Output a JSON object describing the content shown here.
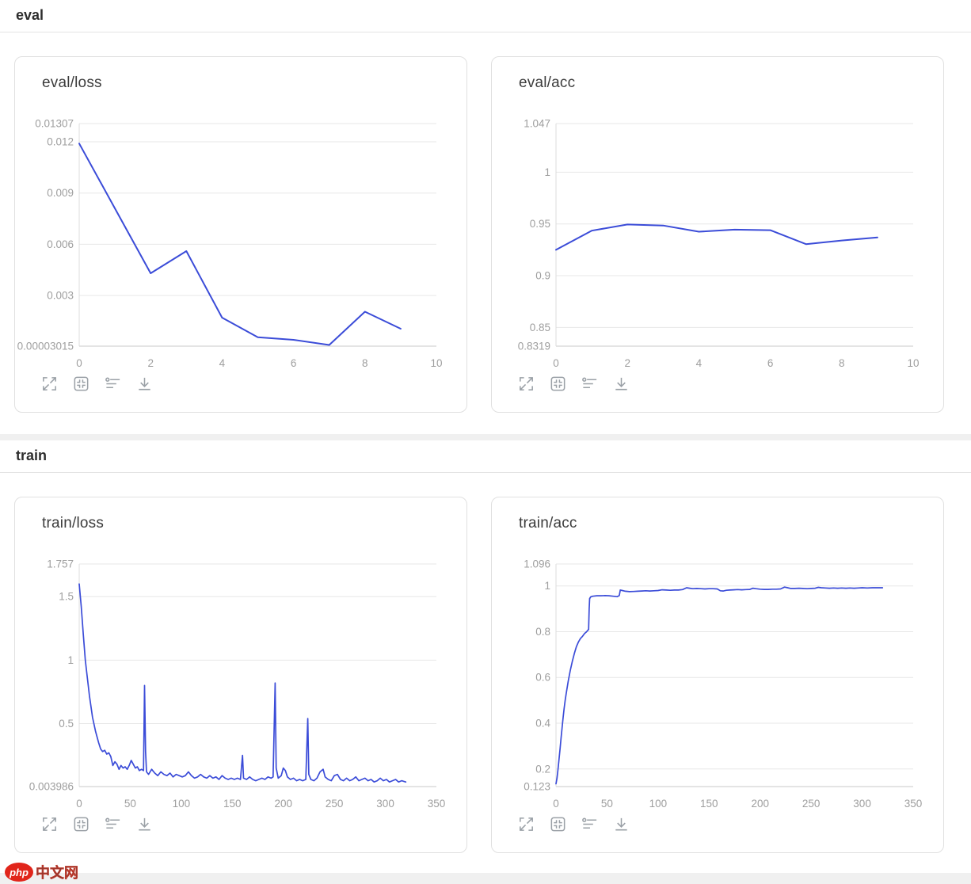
{
  "sections": [
    {
      "title": "eval"
    },
    {
      "title": "train"
    }
  ],
  "page": {
    "watermark": {
      "badge": "php",
      "text": "中文网"
    }
  },
  "toolbar": {
    "icons": [
      {
        "name": "expand"
      },
      {
        "name": "collapse"
      },
      {
        "name": "tune"
      },
      {
        "name": "download"
      }
    ]
  },
  "colors": {
    "line": "#3b4cd8",
    "grid": "#e7e7e7",
    "axis_bottom": "#c9c9c9",
    "axis_left": "#dcdcdc",
    "tick_label": "#9e9e9e",
    "card_border": "#e0e0e0",
    "title": "#3c3c3c",
    "icon": "#9aa0a6",
    "separator": "#f0f0f0"
  },
  "chart_data": [
    {
      "type": "line",
      "section": "eval",
      "title": "eval/loss",
      "xlabel": "",
      "ylabel": "",
      "grid": "horizontal",
      "legend": "none",
      "x_min": 0,
      "x_max": 10,
      "x_ticks": [
        0,
        2,
        4,
        6,
        8,
        10
      ],
      "y_min": 3.015e-05,
      "y_max": 0.01307,
      "line_width": 2,
      "y_ticks": [
        {
          "v": 0.01307,
          "label": "0.01307"
        },
        {
          "v": 0.012,
          "label": "0.012"
        },
        {
          "v": 0.009,
          "label": "0.009"
        },
        {
          "v": 0.006,
          "label": "0.006"
        },
        {
          "v": 0.003,
          "label": "0.003"
        },
        {
          "v": 3.015e-05,
          "label": "0.00003015"
        }
      ],
      "points": [
        [
          0,
          0.0119
        ],
        [
          1,
          0.0081
        ],
        [
          2,
          0.0043
        ],
        [
          3,
          0.0056
        ],
        [
          4,
          0.0017
        ],
        [
          5,
          0.00055
        ],
        [
          6,
          0.0004
        ],
        [
          7,
          0.0001
        ],
        [
          8,
          0.00205
        ],
        [
          9,
          0.00105
        ]
      ]
    },
    {
      "type": "line",
      "section": "eval",
      "title": "eval/acc",
      "xlabel": "",
      "ylabel": "",
      "grid": "horizontal",
      "legend": "none",
      "x_min": 0,
      "x_max": 10,
      "x_ticks": [
        0,
        2,
        4,
        6,
        8,
        10
      ],
      "y_min": 0.8319,
      "y_max": 1.047,
      "line_width": 2,
      "y_ticks": [
        {
          "v": 1.047,
          "label": "1.047"
        },
        {
          "v": 1.0,
          "label": "1"
        },
        {
          "v": 0.95,
          "label": "0.95"
        },
        {
          "v": 0.9,
          "label": "0.9"
        },
        {
          "v": 0.85,
          "label": "0.85"
        },
        {
          "v": 0.8319,
          "label": "0.8319"
        }
      ],
      "points": [
        [
          0,
          0.925
        ],
        [
          1,
          0.9435
        ],
        [
          2,
          0.9495
        ],
        [
          3,
          0.9485
        ],
        [
          4,
          0.9425
        ],
        [
          5,
          0.9445
        ],
        [
          6,
          0.944
        ],
        [
          7,
          0.9305
        ],
        [
          8,
          0.934
        ],
        [
          9,
          0.937
        ]
      ]
    },
    {
      "type": "line",
      "section": "train",
      "title": "train/loss",
      "xlabel": "",
      "ylabel": "",
      "grid": "horizontal",
      "legend": "none",
      "x_min": 0,
      "x_max": 350,
      "x_ticks": [
        0,
        50,
        100,
        150,
        200,
        250,
        300,
        350
      ],
      "y_min": 0.003986,
      "y_max": 1.757,
      "line_width": 1.7,
      "y_ticks": [
        {
          "v": 1.757,
          "label": "1.757"
        },
        {
          "v": 1.5,
          "label": "1.5"
        },
        {
          "v": 1.0,
          "label": "1"
        },
        {
          "v": 0.5,
          "label": "0.5"
        },
        {
          "v": 0.003986,
          "label": "0.003986"
        }
      ],
      "points": [
        [
          0,
          1.6
        ],
        [
          2,
          1.42
        ],
        [
          4,
          1.2
        ],
        [
          6,
          1.0
        ],
        [
          8,
          0.86
        ],
        [
          10,
          0.72
        ],
        [
          13,
          0.55
        ],
        [
          16,
          0.44
        ],
        [
          19,
          0.35
        ],
        [
          21,
          0.3
        ],
        [
          23,
          0.28
        ],
        [
          25,
          0.29
        ],
        [
          27,
          0.26
        ],
        [
          29,
          0.27
        ],
        [
          31,
          0.24
        ],
        [
          33,
          0.17
        ],
        [
          35,
          0.2
        ],
        [
          37,
          0.18
        ],
        [
          39,
          0.14
        ],
        [
          41,
          0.17
        ],
        [
          43,
          0.15
        ],
        [
          45,
          0.16
        ],
        [
          47,
          0.14
        ],
        [
          49,
          0.17
        ],
        [
          51,
          0.21
        ],
        [
          53,
          0.18
        ],
        [
          55,
          0.15
        ],
        [
          57,
          0.16
        ],
        [
          59,
          0.13
        ],
        [
          61,
          0.14
        ],
        [
          63,
          0.13
        ],
        [
          64,
          0.8
        ],
        [
          65,
          0.28
        ],
        [
          66,
          0.12
        ],
        [
          68,
          0.1
        ],
        [
          71,
          0.14
        ],
        [
          74,
          0.11
        ],
        [
          77,
          0.09
        ],
        [
          80,
          0.12
        ],
        [
          83,
          0.1
        ],
        [
          86,
          0.09
        ],
        [
          89,
          0.11
        ],
        [
          92,
          0.08
        ],
        [
          95,
          0.1
        ],
        [
          98,
          0.09
        ],
        [
          101,
          0.08
        ],
        [
          104,
          0.09
        ],
        [
          107,
          0.12
        ],
        [
          110,
          0.09
        ],
        [
          113,
          0.07
        ],
        [
          116,
          0.08
        ],
        [
          119,
          0.1
        ],
        [
          122,
          0.08
        ],
        [
          125,
          0.07
        ],
        [
          128,
          0.09
        ],
        [
          131,
          0.07
        ],
        [
          134,
          0.08
        ],
        [
          137,
          0.06
        ],
        [
          140,
          0.09
        ],
        [
          143,
          0.07
        ],
        [
          146,
          0.06
        ],
        [
          149,
          0.07
        ],
        [
          152,
          0.06
        ],
        [
          155,
          0.07
        ],
        [
          158,
          0.06
        ],
        [
          160,
          0.25
        ],
        [
          161,
          0.07
        ],
        [
          164,
          0.06
        ],
        [
          167,
          0.08
        ],
        [
          170,
          0.06
        ],
        [
          173,
          0.05
        ],
        [
          176,
          0.06
        ],
        [
          179,
          0.07
        ],
        [
          182,
          0.06
        ],
        [
          185,
          0.08
        ],
        [
          188,
          0.07
        ],
        [
          190,
          0.08
        ],
        [
          192,
          0.82
        ],
        [
          193,
          0.15
        ],
        [
          195,
          0.07
        ],
        [
          198,
          0.09
        ],
        [
          200,
          0.15
        ],
        [
          202,
          0.13
        ],
        [
          204,
          0.08
        ],
        [
          207,
          0.06
        ],
        [
          210,
          0.07
        ],
        [
          213,
          0.05
        ],
        [
          216,
          0.06
        ],
        [
          219,
          0.05
        ],
        [
          222,
          0.06
        ],
        [
          224,
          0.54
        ],
        [
          225,
          0.1
        ],
        [
          227,
          0.06
        ],
        [
          230,
          0.05
        ],
        [
          233,
          0.07
        ],
        [
          236,
          0.12
        ],
        [
          239,
          0.14
        ],
        [
          241,
          0.08
        ],
        [
          244,
          0.06
        ],
        [
          247,
          0.05
        ],
        [
          250,
          0.09
        ],
        [
          253,
          0.1
        ],
        [
          256,
          0.06
        ],
        [
          259,
          0.05
        ],
        [
          262,
          0.07
        ],
        [
          265,
          0.05
        ],
        [
          268,
          0.06
        ],
        [
          271,
          0.08
        ],
        [
          274,
          0.05
        ],
        [
          277,
          0.06
        ],
        [
          280,
          0.07
        ],
        [
          283,
          0.05
        ],
        [
          286,
          0.06
        ],
        [
          289,
          0.04
        ],
        [
          292,
          0.05
        ],
        [
          295,
          0.07
        ],
        [
          298,
          0.05
        ],
        [
          301,
          0.06
        ],
        [
          304,
          0.04
        ],
        [
          307,
          0.05
        ],
        [
          310,
          0.06
        ],
        [
          313,
          0.04
        ],
        [
          316,
          0.05
        ],
        [
          320,
          0.04
        ]
      ]
    },
    {
      "type": "line",
      "section": "train",
      "title": "train/acc",
      "xlabel": "",
      "ylabel": "",
      "grid": "horizontal",
      "legend": "none",
      "x_min": 0,
      "x_max": 350,
      "x_ticks": [
        0,
        50,
        100,
        150,
        200,
        250,
        300,
        350
      ],
      "y_min": 0.123,
      "y_max": 1.096,
      "line_width": 1.7,
      "y_ticks": [
        {
          "v": 1.096,
          "label": "1.096"
        },
        {
          "v": 1.0,
          "label": "1"
        },
        {
          "v": 0.8,
          "label": "0.8"
        },
        {
          "v": 0.6,
          "label": "0.6"
        },
        {
          "v": 0.4,
          "label": "0.4"
        },
        {
          "v": 0.2,
          "label": "0.2"
        },
        {
          "v": 0.123,
          "label": "0.123"
        }
      ],
      "points": [
        [
          0,
          0.135
        ],
        [
          1,
          0.16
        ],
        [
          2,
          0.2
        ],
        [
          3,
          0.245
        ],
        [
          4,
          0.29
        ],
        [
          5,
          0.335
        ],
        [
          6,
          0.38
        ],
        [
          7,
          0.425
        ],
        [
          8,
          0.465
        ],
        [
          9,
          0.5
        ],
        [
          10,
          0.53
        ],
        [
          12,
          0.585
        ],
        [
          14,
          0.63
        ],
        [
          16,
          0.67
        ],
        [
          18,
          0.705
        ],
        [
          20,
          0.735
        ],
        [
          22,
          0.755
        ],
        [
          24,
          0.77
        ],
        [
          26,
          0.78
        ],
        [
          28,
          0.792
        ],
        [
          30,
          0.8
        ],
        [
          31,
          0.805
        ],
        [
          32,
          0.81
        ],
        [
          32.5,
          0.9
        ],
        [
          33,
          0.945
        ],
        [
          34,
          0.952
        ],
        [
          36,
          0.955
        ],
        [
          40,
          0.957
        ],
        [
          44,
          0.957
        ],
        [
          48,
          0.958
        ],
        [
          52,
          0.957
        ],
        [
          56,
          0.955
        ],
        [
          60,
          0.953
        ],
        [
          62,
          0.958
        ],
        [
          63,
          0.982
        ],
        [
          65,
          0.98
        ],
        [
          68,
          0.977
        ],
        [
          72,
          0.975
        ],
        [
          76,
          0.976
        ],
        [
          80,
          0.977
        ],
        [
          84,
          0.978
        ],
        [
          88,
          0.979
        ],
        [
          92,
          0.978
        ],
        [
          96,
          0.979
        ],
        [
          100,
          0.98
        ],
        [
          104,
          0.983
        ],
        [
          108,
          0.982
        ],
        [
          112,
          0.981
        ],
        [
          116,
          0.982
        ],
        [
          120,
          0.982
        ],
        [
          124,
          0.984
        ],
        [
          128,
          0.992
        ],
        [
          131,
          0.99
        ],
        [
          134,
          0.988
        ],
        [
          138,
          0.989
        ],
        [
          142,
          0.988
        ],
        [
          146,
          0.987
        ],
        [
          150,
          0.988
        ],
        [
          154,
          0.988
        ],
        [
          158,
          0.987
        ],
        [
          161,
          0.979
        ],
        [
          164,
          0.978
        ],
        [
          167,
          0.981
        ],
        [
          170,
          0.982
        ],
        [
          174,
          0.983
        ],
        [
          178,
          0.984
        ],
        [
          182,
          0.983
        ],
        [
          186,
          0.984
        ],
        [
          190,
          0.985
        ],
        [
          193,
          0.99
        ],
        [
          196,
          0.988
        ],
        [
          200,
          0.986
        ],
        [
          204,
          0.985
        ],
        [
          208,
          0.985
        ],
        [
          212,
          0.986
        ],
        [
          216,
          0.986
        ],
        [
          220,
          0.987
        ],
        [
          224,
          0.995
        ],
        [
          227,
          0.992
        ],
        [
          230,
          0.989
        ],
        [
          234,
          0.989
        ],
        [
          238,
          0.99
        ],
        [
          242,
          0.989
        ],
        [
          246,
          0.988
        ],
        [
          250,
          0.989
        ],
        [
          254,
          0.99
        ],
        [
          257,
          0.994
        ],
        [
          260,
          0.992
        ],
        [
          264,
          0.991
        ],
        [
          268,
          0.99
        ],
        [
          272,
          0.991
        ],
        [
          276,
          0.99
        ],
        [
          280,
          0.991
        ],
        [
          284,
          0.99
        ],
        [
          288,
          0.991
        ],
        [
          292,
          0.99
        ],
        [
          296,
          0.991
        ],
        [
          300,
          0.992
        ],
        [
          305,
          0.991
        ],
        [
          310,
          0.992
        ],
        [
          315,
          0.992
        ],
        [
          320,
          0.992
        ]
      ]
    }
  ]
}
